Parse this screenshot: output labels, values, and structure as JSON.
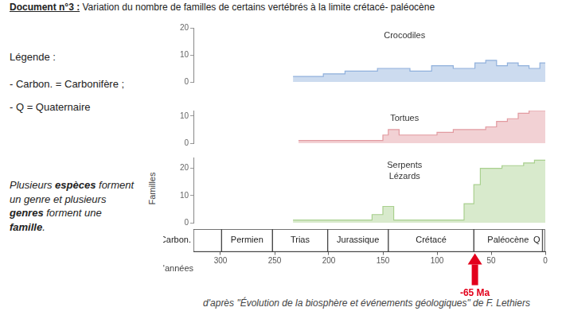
{
  "header": {
    "label": "Document n°3 :",
    "text": "Variation du nombre de familles de certains vertébrés à la limite crétacé- paléocène"
  },
  "legend_notes": {
    "title": "Légende :",
    "items": [
      "- Carbon. = Carbonifère ;",
      "- Q = Quaternaire"
    ]
  },
  "note": [
    [
      {
        "text": "Plusieurs "
      },
      {
        "text": "espèces",
        "bold": true
      },
      {
        "text": " forment"
      }
    ],
    [
      {
        "text": "un genre et plusieurs"
      }
    ],
    [
      {
        "text": "genres",
        "bold": true
      },
      {
        "text": " forment une"
      }
    ],
    [
      {
        "text": "famille",
        "bold": true
      },
      {
        "text": "."
      }
    ]
  ],
  "source": "d'après \"Évolution de la biosphère et événements géologiques\" de F. Lethiers",
  "chart_data": [
    {
      "type": "line",
      "title": "Crocodiles",
      "line_style": "step",
      "color": "#8fb0dc",
      "grid": false,
      "tick_labels": "y",
      "x": [
        233,
        205,
        185,
        155,
        125,
        105,
        85,
        65,
        55,
        45,
        35,
        25,
        15,
        5,
        0
      ],
      "values": [
        2,
        3,
        4,
        5,
        4,
        6,
        5,
        7,
        8,
        6,
        7,
        6,
        5,
        7,
        7
      ],
      "xlim": [
        325,
        0
      ],
      "ylim": [
        0,
        20
      ],
      "yticks": [
        0,
        10,
        20
      ]
    },
    {
      "type": "line",
      "title": "Tortues",
      "line_style": "step",
      "color": "#e29aa0",
      "grid": false,
      "tick_labels": "y",
      "x": [
        228,
        150,
        145,
        135,
        100,
        85,
        65,
        55,
        45,
        35,
        25,
        15,
        0
      ],
      "values": [
        1,
        3,
        5,
        3,
        4,
        5,
        5,
        6,
        8,
        9,
        11,
        12,
        12
      ],
      "xlim": [
        325,
        0
      ],
      "ylim": [
        0,
        12
      ],
      "yticks": [
        0,
        10
      ]
    },
    {
      "type": "line",
      "title": [
        "Serpents",
        "Lézards"
      ],
      "ylabel": "Familles",
      "line_style": "step",
      "color": "#a9d08e",
      "grid": false,
      "tick_labels": "y",
      "x": [
        233,
        160,
        150,
        140,
        75,
        66,
        60,
        40,
        20,
        10,
        0
      ],
      "values": [
        1,
        3,
        6,
        1,
        7,
        14,
        20,
        21,
        22,
        23,
        23
      ],
      "xlim": [
        325,
        0
      ],
      "ylim": [
        0,
        24
      ],
      "yticks": [
        0,
        10,
        20
      ]
    },
    {
      "type": "bar",
      "orientation": "horizontal",
      "grid": false,
      "tick_labels": "x",
      "categories": [
        "Carbon.",
        "Permien",
        "Trias",
        "Jurassique",
        "Crétacé",
        "Paléocène",
        "Q"
      ],
      "ranges": [
        [
          325,
          299
        ],
        [
          299,
          252
        ],
        [
          252,
          201
        ],
        [
          201,
          145
        ],
        [
          145,
          66
        ],
        [
          66,
          2.6
        ],
        [
          2.6,
          0
        ]
      ],
      "xlim": [
        325,
        0
      ],
      "xticks": [
        300,
        250,
        200,
        150,
        100,
        50,
        0
      ],
      "xlabel": "en millions d'années",
      "annotations": [
        {
          "x": 65,
          "text": "-65 Ma",
          "color": "#e3001b"
        }
      ]
    }
  ]
}
